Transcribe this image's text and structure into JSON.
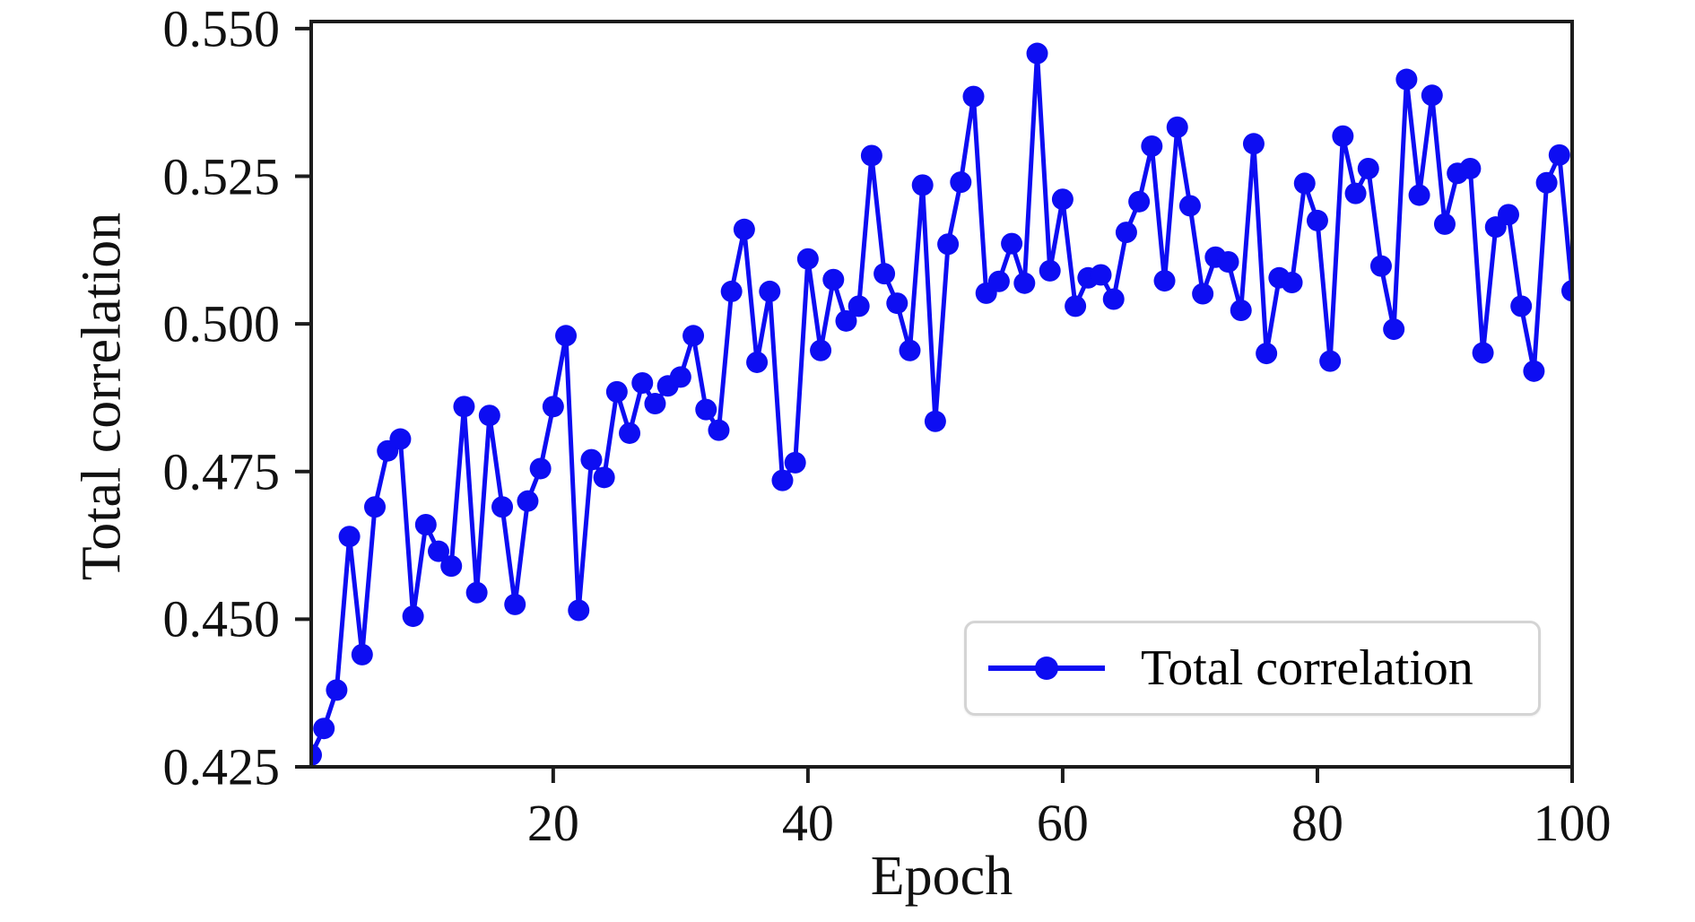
{
  "colors": {
    "line": "#0d0df2",
    "axis": "#1c1c1c",
    "text": "#111111",
    "legend_border": "#d4d4d4",
    "background": "#ffffff"
  },
  "chart_data": {
    "type": "line",
    "title": "",
    "xlabel": "Epoch",
    "ylabel": "Total correlation",
    "grid": false,
    "legend_position": "lower right",
    "legend": [
      {
        "label": "Total correlation",
        "color": "#0d0df2",
        "marker": "circle"
      }
    ],
    "xlim": [
      1,
      100
    ],
    "ylim": [
      0.425,
      0.5512
    ],
    "x_ticks": [
      20,
      40,
      60,
      80,
      100
    ],
    "x_tick_labels": [
      "20",
      "40",
      "60",
      "80",
      "100"
    ],
    "y_ticks": [
      0.55,
      0.525,
      0.5,
      0.475,
      0.45,
      0.425
    ],
    "y_tick_labels": [
      "0.550",
      "0.525",
      "0.500",
      "0.475",
      "0.450",
      "0.425"
    ],
    "x": [
      1,
      2,
      3,
      4,
      5,
      6,
      7,
      8,
      9,
      10,
      11,
      12,
      13,
      14,
      15,
      16,
      17,
      18,
      19,
      20,
      21,
      22,
      23,
      24,
      25,
      26,
      27,
      28,
      29,
      30,
      31,
      32,
      33,
      34,
      35,
      36,
      37,
      38,
      39,
      40,
      41,
      42,
      43,
      44,
      45,
      46,
      47,
      48,
      49,
      50,
      51,
      52,
      53,
      54,
      55,
      56,
      57,
      58,
      59,
      60,
      61,
      62,
      63,
      64,
      65,
      66,
      67,
      68,
      69,
      70,
      71,
      72,
      73,
      74,
      75,
      76,
      77,
      78,
      79,
      80,
      81,
      82,
      83,
      84,
      85,
      86,
      87,
      88,
      89,
      90,
      91,
      92,
      93,
      94,
      95,
      96,
      97,
      98,
      99,
      100
    ],
    "series": [
      {
        "name": "Total correlation",
        "values": [
          0.427,
          0.4315,
          0.438,
          0.464,
          0.444,
          0.469,
          0.4785,
          0.4805,
          0.4505,
          0.466,
          0.4615,
          0.459,
          0.486,
          0.4545,
          0.4845,
          0.469,
          0.4525,
          0.47,
          0.4755,
          0.486,
          0.498,
          0.4515,
          0.477,
          0.474,
          0.4885,
          0.4815,
          0.49,
          0.4865,
          0.4895,
          0.491,
          0.498,
          0.4855,
          0.482,
          0.5055,
          0.516,
          0.4935,
          0.5055,
          0.4735,
          0.4765,
          0.511,
          0.4955,
          0.5075,
          0.5005,
          0.503,
          0.5285,
          0.5085,
          0.5035,
          0.4955,
          0.5235,
          0.4835,
          0.5135,
          0.524,
          0.5385,
          0.5052,
          0.5072,
          0.5136,
          0.5069,
          0.5458,
          0.509,
          0.5211,
          0.503,
          0.5078,
          0.5083,
          0.5042,
          0.5155,
          0.5207,
          0.5301,
          0.5073,
          0.5333,
          0.52,
          0.5051,
          0.5113,
          0.5105,
          0.5023,
          0.5305,
          0.495,
          0.5078,
          0.507,
          0.5238,
          0.5175,
          0.4937,
          0.5318,
          0.5221,
          0.5263,
          0.5098,
          0.4991,
          0.5414,
          0.5218,
          0.5387,
          0.5169,
          0.5255,
          0.5263,
          0.4951,
          0.5164,
          0.5185,
          0.503,
          0.492,
          0.5239,
          0.5286,
          0.5056
        ]
      }
    ]
  }
}
